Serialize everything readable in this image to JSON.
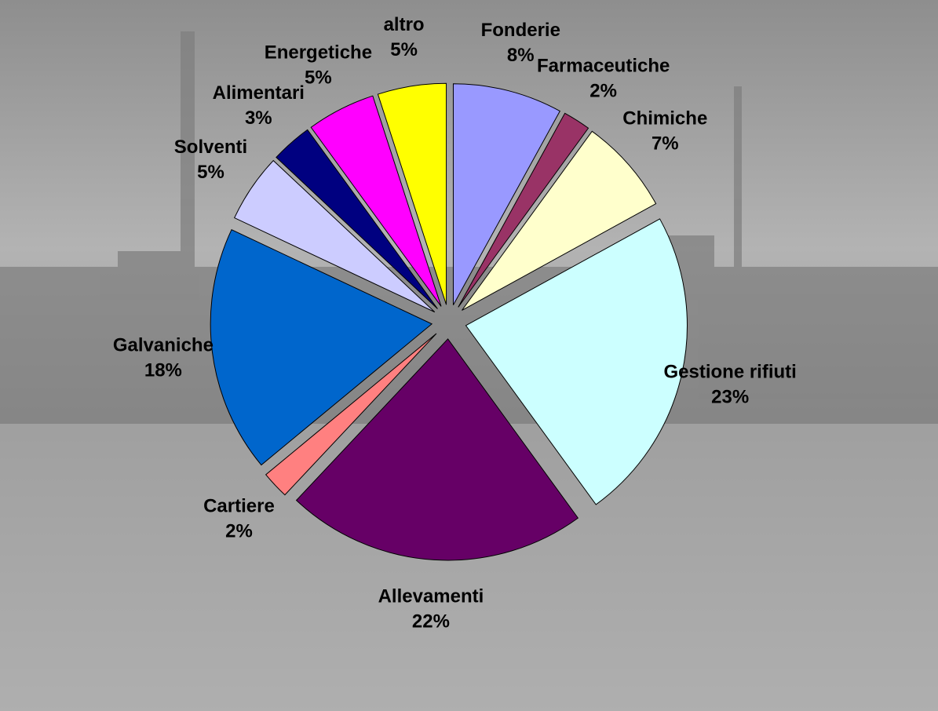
{
  "chart_data": {
    "type": "pie",
    "categories": [
      "Fonderie",
      "Farmaceutiche",
      "Chimiche",
      "Gestione rifiuti",
      "Allevamenti",
      "Cartiere",
      "Galvaniche",
      "Solventi",
      "Alimentari",
      "Energetiche",
      "altro"
    ],
    "values": [
      8,
      2,
      7,
      23,
      22,
      2,
      18,
      5,
      3,
      5,
      5
    ],
    "value_labels": [
      "8%",
      "2%",
      "7%",
      "23%",
      "22%",
      "2%",
      "18%",
      "5%",
      "3%",
      "5%",
      "5%"
    ],
    "colors": [
      "#9999ff",
      "#993366",
      "#ffffcc",
      "#ccffff",
      "#660066",
      "#ff8080",
      "#0066cc",
      "#ccccff",
      "#000080",
      "#ff00ff",
      "#ffff00"
    ]
  }
}
